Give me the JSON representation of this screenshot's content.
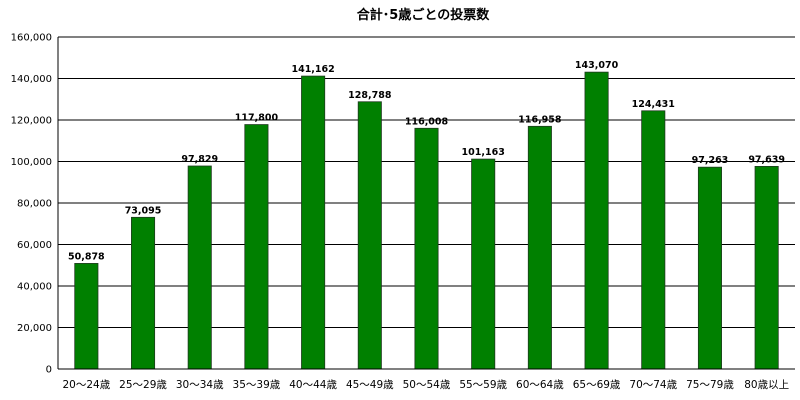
{
  "chart_data": {
    "type": "bar",
    "title": "合計･5歳ごとの投票数",
    "xlabel": "",
    "ylabel": "",
    "ylim": [
      0,
      160000
    ],
    "yticks": [
      0,
      20000,
      40000,
      60000,
      80000,
      100000,
      120000,
      140000,
      160000
    ],
    "ytick_labels": [
      "0",
      "20,000",
      "40,000",
      "60,000",
      "80,000",
      "100,000",
      "120,000",
      "140,000",
      "160,000"
    ],
    "grid": true,
    "legend": "none",
    "bar_color": "#008000",
    "categories": [
      "20～24歳",
      "25～29歳",
      "30～34歳",
      "35～39歳",
      "40～44歳",
      "45～49歳",
      "50～54歳",
      "55～59歳",
      "60～64歳",
      "65～69歳",
      "70～74歳",
      "75～79歳",
      "80歳以上"
    ],
    "values": [
      50878,
      73095,
      97829,
      117800,
      141162,
      128788,
      116008,
      101163,
      116958,
      143070,
      124431,
      97263,
      97639
    ],
    "value_labels": [
      "50,878",
      "73,095",
      "97,829",
      "117,800",
      "141,162",
      "128,788",
      "116,008",
      "101,163",
      "116,958",
      "143,070",
      "124,431",
      "97,263",
      "97,639"
    ]
  }
}
